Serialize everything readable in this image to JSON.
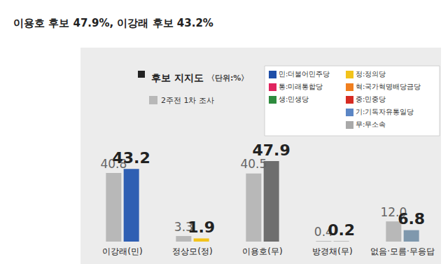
{
  "header": {
    "title": "이용호 후보 47.9%, 이강래 후보 43.2%"
  },
  "chart_data": {
    "type": "bar",
    "title": "후보 지지도",
    "subtitle": "〈단위:%〉",
    "categories": [
      "이강래(민)",
      "정상모(정)",
      "이용호(무)",
      "방경채(무)",
      "없음·모름·무응답"
    ],
    "series": [
      {
        "name": "2주전 1차 조사",
        "color": "#b8b8b8",
        "values": [
          40.8,
          3.3,
          40.5,
          0.4,
          12.0
        ],
        "value_labels": [
          "40.8",
          "3.3",
          "40.5",
          "0.4",
          "12.0"
        ]
      },
      {
        "colors": [
          "#2f5fb3",
          "#f2c31b",
          "#6e6e6e",
          "#8c8c8c",
          "#7f98ad"
        ],
        "values": [
          43.2,
          1.9,
          47.9,
          0.2,
          6.8
        ]
      }
    ],
    "annotations": [
      {
        "text": "민:더불어민주당",
        "color": "#1f4fa8"
      },
      {
        "text": "통:미래통합당",
        "color": "#e0245e"
      },
      {
        "text": "생:민생당",
        "color": "#2e8b3e"
      },
      {
        "text": "정:정의당",
        "color": "#f2c31b"
      },
      {
        "text": "혁:국가혁명배당금당",
        "color": "#f07f1f"
      },
      {
        "text": "중:민중당",
        "color": "#d62b22"
      },
      {
        "text": "기:기독자유통일당",
        "color": "#5b86c5"
      },
      {
        "text": "무:무소속",
        "color": "#a9a9a9"
      }
    ],
    "legend": "top-left",
    "data_labels": true,
    "tick_labels": "x",
    "grid": false
  }
}
